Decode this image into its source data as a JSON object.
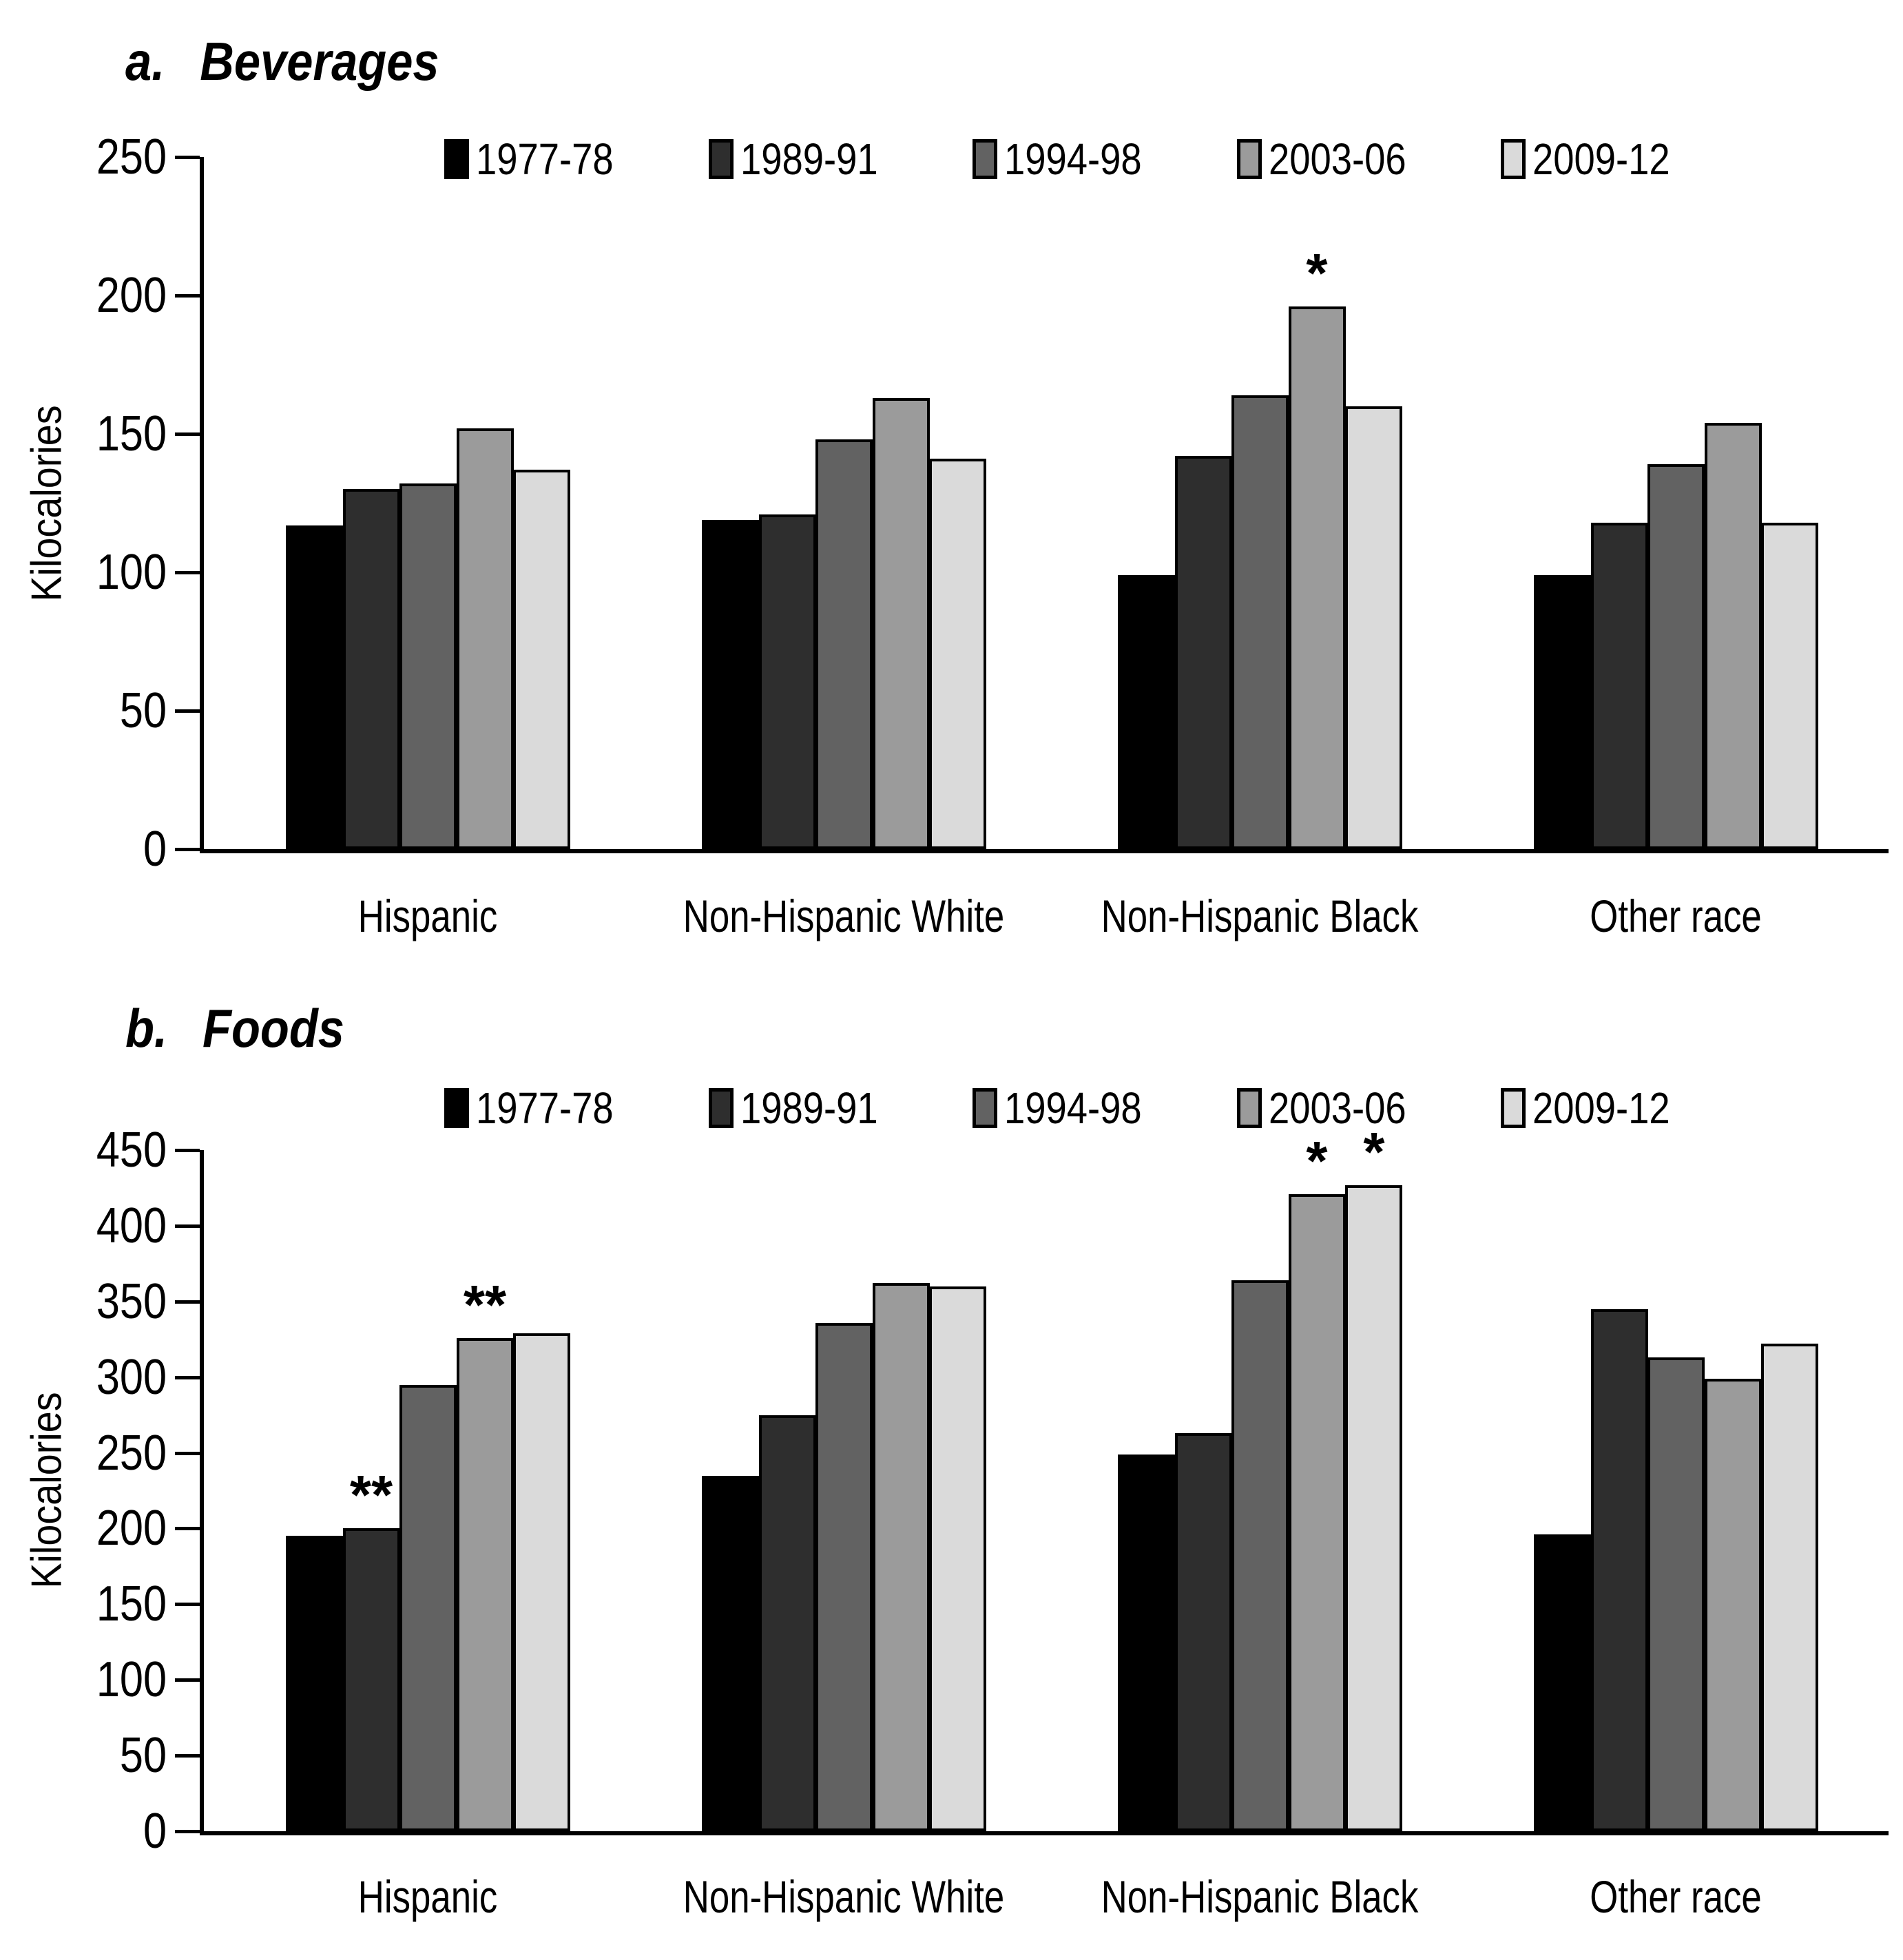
{
  "figure_title": "Trends in kilocalories from beverages and foods by race/ethnicity",
  "legend": [
    "1977-78",
    "1989-91",
    "1994-98",
    "2003-06",
    "2009-12"
  ],
  "series_colors": [
    "#000000",
    "#2e2e2e",
    "#626262",
    "#9b9b9b",
    "#dadada"
  ],
  "chart_data": [
    {
      "type": "bar",
      "id": "beverages",
      "panel_label": "a.",
      "panel_title": "Beverages",
      "ylabel": "Kilocalories",
      "xlabel": "",
      "ylim": [
        0,
        250
      ],
      "ytick_step": 50,
      "grid": false,
      "legend_position": "top",
      "categories": [
        "Hispanic",
        "Non-Hispanic White",
        "Non-Hispanic Black",
        "Other race"
      ],
      "series": [
        {
          "name": "1977-78",
          "color": "#000000",
          "values": [
            117,
            119,
            99,
            99
          ]
        },
        {
          "name": "1989-91",
          "color": "#2e2e2e",
          "values": [
            130,
            121,
            142,
            118
          ]
        },
        {
          "name": "1994-98",
          "color": "#626262",
          "values": [
            132,
            148,
            164,
            139
          ]
        },
        {
          "name": "2003-06",
          "color": "#9b9b9b",
          "values": [
            152,
            163,
            196,
            154
          ]
        },
        {
          "name": "2009-12",
          "color": "#dadada",
          "values": [
            137,
            141,
            160,
            118
          ]
        }
      ],
      "annotations": [
        {
          "category": "Non-Hispanic Black",
          "series": "2003-06",
          "text": "*"
        }
      ]
    },
    {
      "type": "bar",
      "id": "foods",
      "panel_label": "b.",
      "panel_title": "Foods",
      "ylabel": "Kilocalories",
      "xlabel": "",
      "ylim": [
        0,
        450
      ],
      "ytick_step": 50,
      "grid": false,
      "legend_position": "top",
      "categories": [
        "Hispanic",
        "Non-Hispanic White",
        "Non-Hispanic Black",
        "Other race"
      ],
      "series": [
        {
          "name": "1977-78",
          "color": "#000000",
          "values": [
            195,
            235,
            249,
            196
          ]
        },
        {
          "name": "1989-91",
          "color": "#2e2e2e",
          "values": [
            200,
            275,
            263,
            345
          ]
        },
        {
          "name": "1994-98",
          "color": "#626262",
          "values": [
            295,
            336,
            364,
            313
          ]
        },
        {
          "name": "2003-06",
          "color": "#9b9b9b",
          "values": [
            326,
            362,
            421,
            299
          ]
        },
        {
          "name": "2009-12",
          "color": "#dadada",
          "values": [
            329,
            360,
            427,
            322
          ]
        }
      ],
      "annotations": [
        {
          "category": "Hispanic",
          "series": "1989-91",
          "text": "**"
        },
        {
          "category": "Hispanic",
          "series": "2003-06",
          "text": "**"
        },
        {
          "category": "Non-Hispanic Black",
          "series": "2003-06",
          "text": "*"
        },
        {
          "category": "Non-Hispanic Black",
          "series": "2009-12",
          "text": "*"
        }
      ]
    }
  ]
}
